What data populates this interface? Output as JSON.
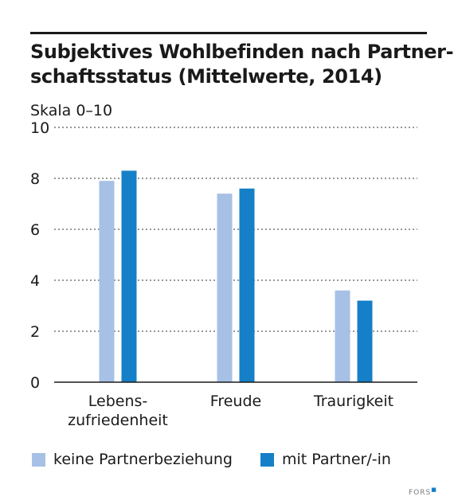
{
  "title_lines": [
    "Subjektives Wohlbefinden nach Partner-",
    "schaftsstatus (Mittelwerte, 2014)"
  ],
  "brand": "FORS",
  "chart_data": {
    "type": "bar",
    "title": "Subjektives Wohlbefinden nach Partnerschaftsstatus (Mittelwerte, 2014)",
    "ylabel": "Skala 0–10",
    "ylim": [
      0,
      10
    ],
    "yticks": [
      0,
      2,
      4,
      6,
      8,
      10
    ],
    "grid": true,
    "legend_position": "bottom",
    "categories": [
      [
        "Lebens-",
        "zufriedenheit"
      ],
      [
        "Freude"
      ],
      [
        "Traurigkeit"
      ]
    ],
    "series": [
      {
        "name": "keine Partnerbeziehung",
        "color": "#a7c0e6",
        "values": [
          7.9,
          7.4,
          3.6
        ]
      },
      {
        "name": "mit Partner/-in",
        "color": "#1580c8",
        "values": [
          8.3,
          7.6,
          3.2
        ]
      }
    ]
  }
}
